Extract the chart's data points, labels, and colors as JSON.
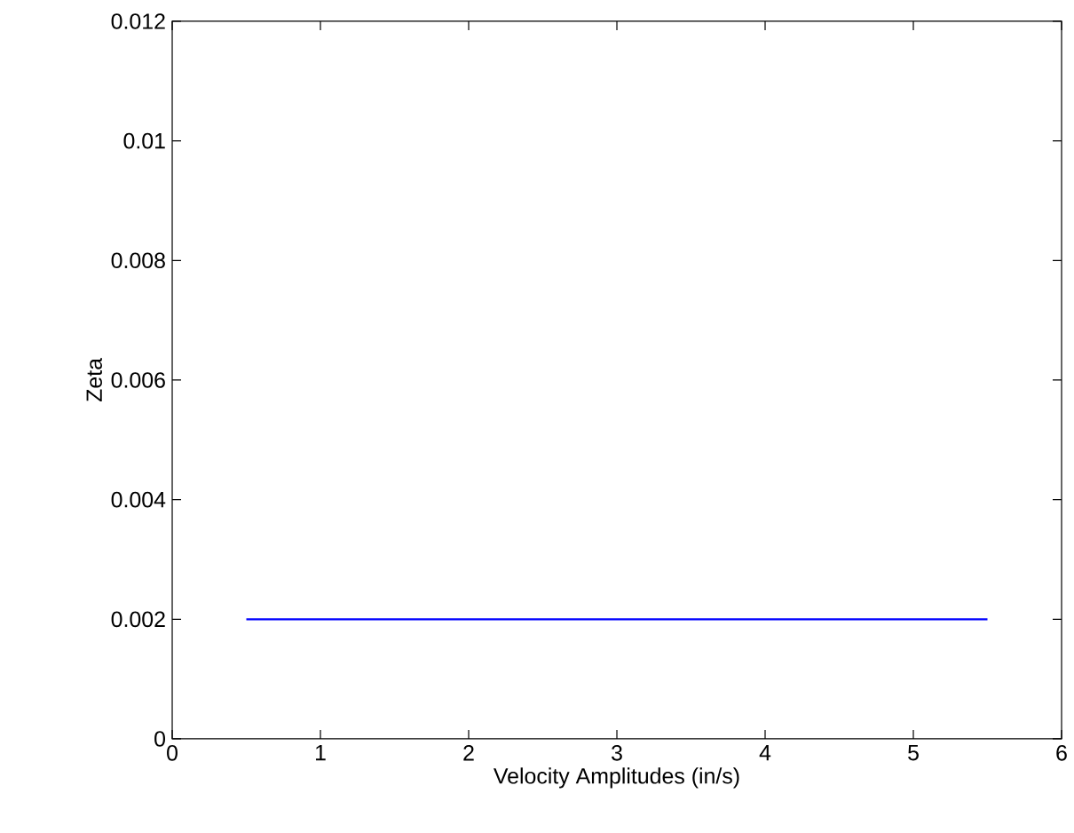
{
  "chart_data": {
    "type": "line",
    "xlabel": "Velocity Amplitudes (in/s)",
    "ylabel": "Zeta",
    "x": [
      0.5,
      5.5
    ],
    "series": [
      {
        "color": "#0000ff",
        "values": [
          0.002,
          0.002
        ]
      }
    ],
    "xlim": [
      0,
      6
    ],
    "ylim": [
      0,
      0.012
    ],
    "xticks": [
      0,
      1,
      2,
      3,
      4,
      5,
      6
    ],
    "yticks": [
      0,
      0.002,
      0.004,
      0.006,
      0.008,
      0.01,
      0.012
    ],
    "grid": false
  }
}
